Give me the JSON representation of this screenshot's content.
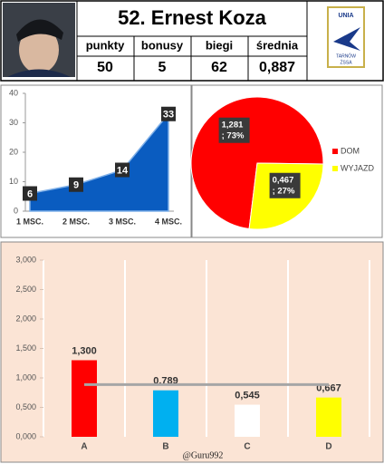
{
  "header": {
    "title": "52. Ernest Koza",
    "stats": {
      "columns": [
        "punkty",
        "bonusy",
        "biegi",
        "średnia"
      ],
      "values": [
        "50",
        "5",
        "62",
        "0,887"
      ]
    },
    "logo": [
      "UNIA",
      "TARNÓW",
      "ŻSSA"
    ]
  },
  "chart_data": [
    {
      "type": "area",
      "categories": [
        "1 MSC.",
        "2 MSC.",
        "3 MSC.",
        "4 MSC."
      ],
      "values": [
        6,
        9,
        14,
        33
      ],
      "color": "#0a5cc0",
      "ylim": [
        0,
        40
      ],
      "yticks": [
        0,
        10,
        20,
        30,
        40
      ]
    },
    {
      "type": "pie",
      "categories": [
        "DOM",
        "WYJAZD"
      ],
      "values": [
        1.281,
        0.467
      ],
      "value_labels": [
        [
          "1,281",
          "; 73%"
        ],
        [
          "0,467",
          "; 27%"
        ]
      ],
      "colors": [
        "#ff0000",
        "#ffff00"
      ],
      "legend": "right"
    },
    {
      "type": "bar",
      "categories": [
        "A",
        "B",
        "C",
        "D"
      ],
      "values": [
        1.3,
        0.789,
        0.545,
        0.667
      ],
      "value_labels": [
        "1,300",
        "0,789",
        "0,545",
        "0,667"
      ],
      "colors": [
        "#ff0000",
        "#00b0f0",
        "#ffffff",
        "#ffff00"
      ],
      "average": 0.887,
      "ylim": [
        0,
        3
      ],
      "yticks": [
        {
          "value": 0,
          "label": "0,000"
        },
        {
          "value": 0.5,
          "label": "0,500"
        },
        {
          "value": 1,
          "label": "1,000"
        },
        {
          "value": 1.5,
          "label": "1,500"
        },
        {
          "value": 2,
          "label": "2,000"
        },
        {
          "value": 2.5,
          "label": "2,500"
        },
        {
          "value": 3,
          "label": "3,000"
        }
      ],
      "annotation": "@Guru992"
    }
  ]
}
